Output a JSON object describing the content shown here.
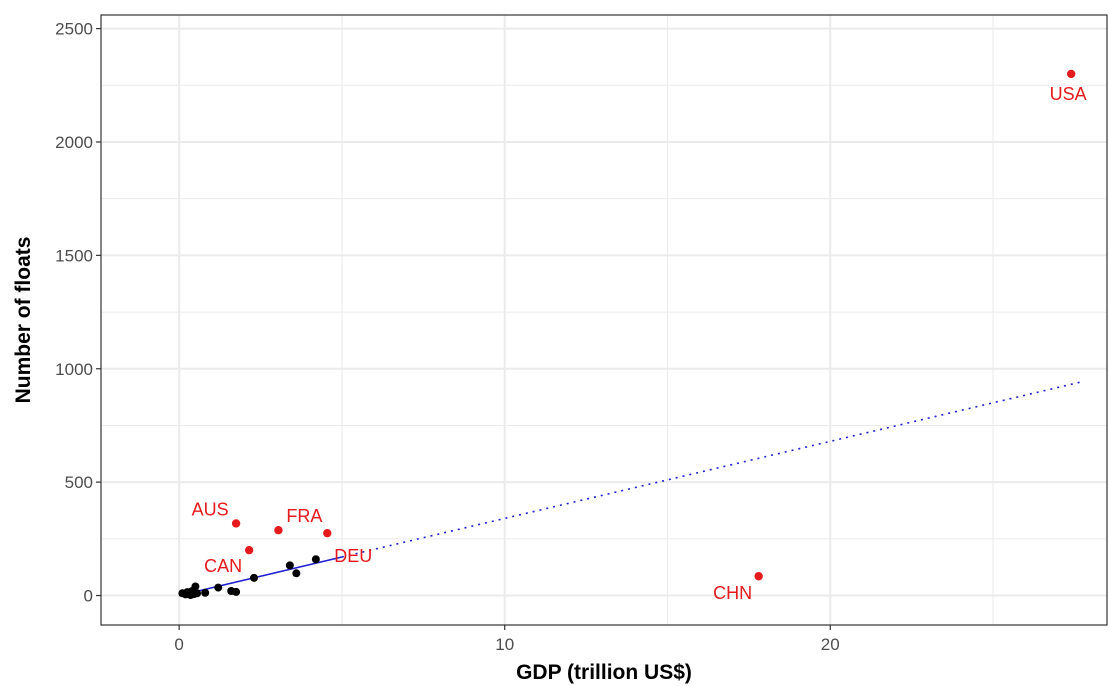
{
  "chart_data": {
    "type": "scatter",
    "xlabel": "GDP (trillion US$)",
    "ylabel": "Number of floats",
    "xlim": [
      -2.4,
      28.5
    ],
    "ylim": [
      -130,
      2560
    ],
    "x_ticks": [
      0,
      10,
      20
    ],
    "y_ticks": [
      0,
      500,
      1000,
      1500,
      2000,
      2500
    ],
    "grid": true,
    "colors": {
      "highlight": "#e41a1c",
      "other": "#000000",
      "fit": "#1f1fd0",
      "grid": "#ebebeb"
    },
    "points": [
      {
        "x": 0.1,
        "y": 10
      },
      {
        "x": 0.2,
        "y": 5
      },
      {
        "x": 0.25,
        "y": 15
      },
      {
        "x": 0.3,
        "y": 8
      },
      {
        "x": 0.35,
        "y": 2
      },
      {
        "x": 0.4,
        "y": 20
      },
      {
        "x": 0.45,
        "y": 6
      },
      {
        "x": 0.5,
        "y": 40
      },
      {
        "x": 0.55,
        "y": 10
      },
      {
        "x": 0.8,
        "y": 12
      },
      {
        "x": 1.2,
        "y": 35
      },
      {
        "x": 1.6,
        "y": 20
      },
      {
        "x": 1.75,
        "y": 16
      },
      {
        "x": 2.3,
        "y": 78
      },
      {
        "x": 3.4,
        "y": 133
      },
      {
        "x": 3.6,
        "y": 98
      },
      {
        "x": 4.2,
        "y": 160
      }
    ],
    "labeled_points": [
      {
        "label": "USA",
        "x": 27.4,
        "y": 2300
      },
      {
        "label": "CHN",
        "x": 17.8,
        "y": 85
      },
      {
        "label": "AUS",
        "x": 1.75,
        "y": 318
      },
      {
        "label": "FRA",
        "x": 3.05,
        "y": 288
      },
      {
        "label": "DEU",
        "x": 4.55,
        "y": 275
      },
      {
        "label": "CAN",
        "x": 2.15,
        "y": 200
      }
    ],
    "fit_line_solid": {
      "x": [
        0,
        5.0
      ],
      "y": [
        0,
        170
      ]
    },
    "fit_line_dotted": {
      "x": [
        5.0,
        27.8
      ],
      "y": [
        170,
        945
      ]
    }
  }
}
